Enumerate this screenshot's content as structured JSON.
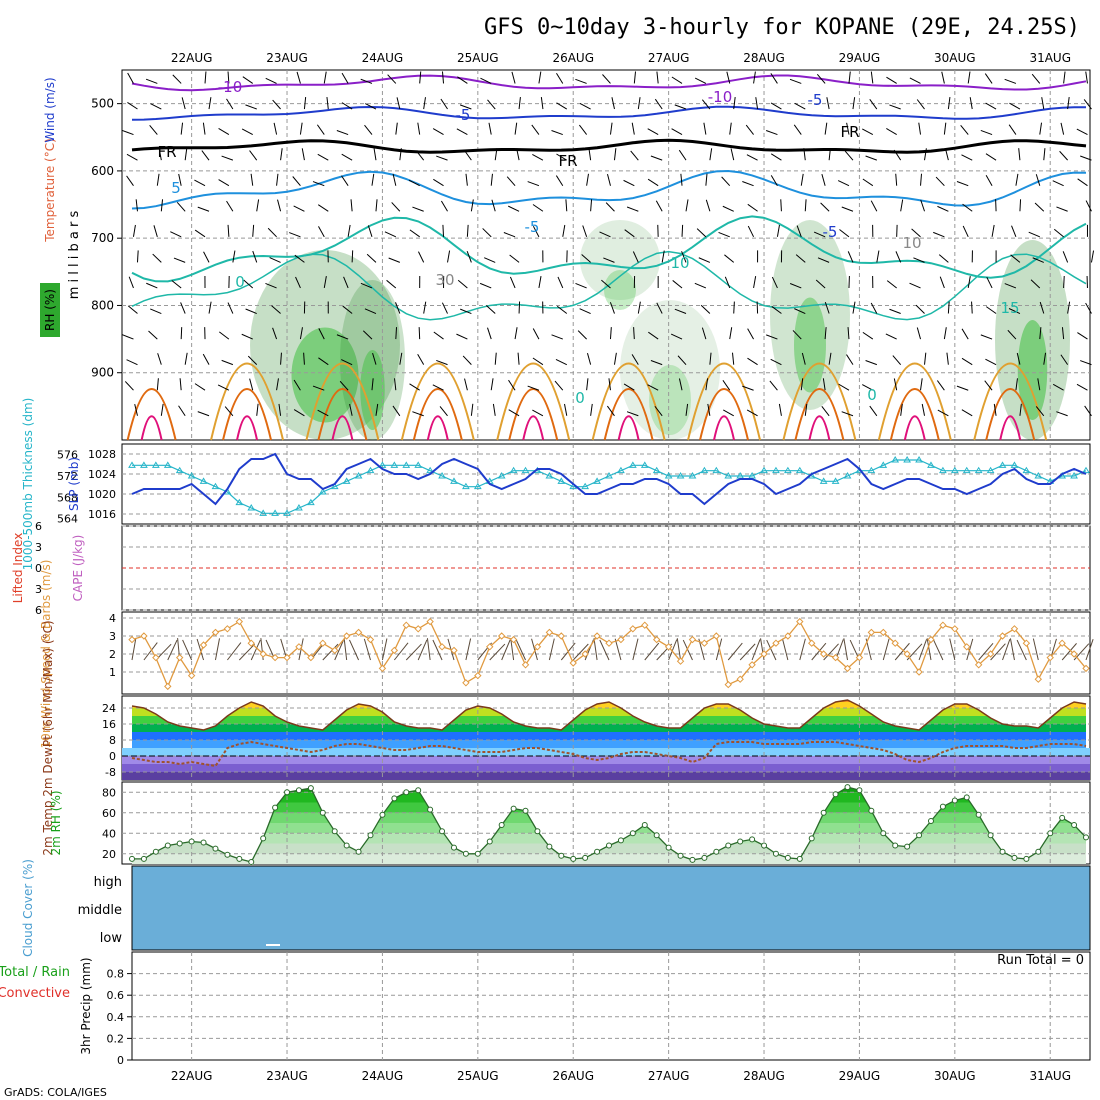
{
  "header": {
    "title": "GFS 0~10day 3-hourly for KOPANE (29E, 24.25S)",
    "footer": "GrADS: COLA/IGES"
  },
  "time_axis": {
    "date_labels": [
      "22AUG",
      "23AUG",
      "24AUG",
      "25AUG",
      "26AUG",
      "27AUG",
      "28AUG",
      "29AUG",
      "30AUG",
      "31AUG"
    ]
  },
  "colors": {
    "purple": "#8a1fc8",
    "blue": "#1f3ccc",
    "lightblue": "#1e90dd",
    "teal": "#1fb8a8",
    "orange": "#e0a030",
    "darkorange": "#e06a10",
    "magenta": "#e0107a",
    "rh_green": "#5fcf5f",
    "slp_line": "#1f3ccc",
    "thickness_line": "#26b5c9",
    "cloud": "#6aaed8",
    "wind_speed": "#e09a40",
    "dewpoint": "#a0522d"
  },
  "chart_data": [
    {
      "type": "contour",
      "panel": "upper-air",
      "ylabel": "m i l l i b a r s",
      "side_labels": {
        "rh": "RH (%)",
        "temperature": "Temperature (°C)",
        "wind": "Wind (m/s)"
      },
      "y_ticks": [
        500,
        600,
        700,
        800,
        900
      ],
      "ylim": [
        1000,
        450
      ],
      "contour_labels": [
        "-10",
        "-10",
        "-5",
        "-5",
        "FR",
        "FR",
        "FR",
        "-5",
        "5",
        "-5",
        "0",
        "10",
        "15",
        "0",
        "0",
        "30",
        "10"
      ]
    },
    {
      "type": "line",
      "panel": "slp-thickness",
      "ylabel_left": "1000-500mb Thickness (dm)",
      "ylabel_right": "SLP (mb)",
      "left_ticks": [
        564,
        568,
        572,
        576
      ],
      "right_ticks": [
        1016,
        1020,
        1024,
        1028
      ],
      "series": [
        {
          "name": "SLP (mb)",
          "values": [
            1020,
            1021,
            1021,
            1021,
            1021,
            1022,
            1020,
            1018,
            1021,
            1025,
            1027,
            1027,
            1028,
            1024,
            1023,
            1023,
            1021,
            1022,
            1025,
            1026,
            1027,
            1025,
            1024,
            1024,
            1023,
            1024,
            1026,
            1027,
            1026,
            1025,
            1022,
            1021,
            1022,
            1023,
            1025,
            1025,
            1024,
            1022,
            1020,
            1020,
            1021,
            1022,
            1022,
            1023,
            1023,
            1022,
            1020,
            1020,
            1018,
            1020,
            1022,
            1023,
            1023,
            1022,
            1020,
            1021,
            1022,
            1024,
            1025,
            1026,
            1027,
            1025,
            1022,
            1021,
            1022,
            1023,
            1023,
            1022,
            1021,
            1021,
            1020,
            1021,
            1022,
            1024,
            1025,
            1023,
            1022,
            1022,
            1024,
            1025,
            1024
          ]
        },
        {
          "name": "1000-500mb Thickness (dm)",
          "values": [
            574,
            574,
            574,
            574,
            573,
            572,
            571,
            570,
            569,
            567,
            566,
            565,
            565,
            565,
            566,
            567,
            569,
            570,
            571,
            572,
            573,
            574,
            574,
            574,
            574,
            573,
            572,
            571,
            570,
            570,
            571,
            572,
            573,
            573,
            573,
            572,
            571,
            570,
            570,
            571,
            572,
            573,
            574,
            574,
            573,
            572,
            572,
            572,
            573,
            573,
            572,
            572,
            572,
            573,
            573,
            573,
            573,
            572,
            571,
            571,
            572,
            573,
            573,
            574,
            575,
            575,
            575,
            574,
            573,
            573,
            573,
            573,
            573,
            574,
            574,
            573,
            572,
            571,
            572,
            572,
            573
          ]
        }
      ]
    },
    {
      "type": "line",
      "panel": "stability",
      "ylabel_left": "Lifted Index",
      "ylabel_right": "CAPE (J/kg)",
      "left_ticks": [
        -6,
        -3,
        0,
        3,
        6
      ],
      "ylim": [
        6,
        -6
      ]
    },
    {
      "type": "line",
      "panel": "10m-wind",
      "ylabel": "10m Wind Speed & Barbs (m/s)",
      "y_ticks": [
        1,
        2,
        3,
        4
      ],
      "ylim": [
        0,
        4
      ],
      "series": [
        {
          "name": "Speed",
          "values": [
            2.8,
            3.0,
            1.8,
            0.2,
            1.8,
            0.8,
            2.5,
            3.2,
            3.4,
            3.8,
            2.6,
            2.0,
            1.8,
            1.8,
            2.4,
            1.8,
            2.6,
            2.2,
            3.0,
            3.2,
            2.8,
            1.2,
            2.2,
            3.6,
            3.4,
            3.8,
            2.4,
            2.2,
            0.4,
            0.8,
            2.4,
            3.0,
            2.8,
            1.4,
            2.4,
            3.2,
            3.0,
            1.5,
            2.0,
            3.0,
            2.6,
            2.8,
            3.4,
            3.6,
            2.8,
            2.4,
            1.6,
            2.8,
            2.6,
            3.0,
            0.3,
            0.6,
            1.4,
            2.0,
            2.6,
            3.0,
            3.8,
            2.6,
            2.0,
            1.8,
            1.2,
            1.8,
            3.2,
            3.2,
            2.6,
            2.0,
            1.0,
            2.8,
            3.6,
            3.4,
            2.4,
            1.4,
            2.0,
            3.0,
            3.4,
            2.6,
            0.6,
            1.8,
            2.6,
            2.0,
            1.2
          ]
        }
      ]
    },
    {
      "type": "area",
      "panel": "2m-temp",
      "ylabel": "2m Temp 2m DewPt (6hr Min/Max) (°C)",
      "y_ticks": [
        -8,
        0,
        8,
        16,
        24
      ],
      "ylim": [
        -12,
        30
      ],
      "series": [
        {
          "name": "2m Temp",
          "values": [
            25,
            24,
            21,
            17,
            15,
            14,
            13,
            15,
            20,
            24,
            27,
            25,
            20,
            17,
            15,
            14,
            13,
            18,
            23,
            26,
            25,
            22,
            17,
            15,
            14,
            14,
            13,
            18,
            23,
            25,
            24,
            21,
            17,
            15,
            14,
            14,
            13,
            18,
            23,
            26,
            27,
            24,
            20,
            17,
            15,
            14,
            14,
            19,
            24,
            26,
            26,
            23,
            19,
            16,
            15,
            14,
            14,
            19,
            24,
            27,
            28,
            25,
            21,
            17,
            15,
            14,
            13,
            18,
            23,
            26,
            26,
            23,
            19,
            16,
            15,
            15,
            14,
            19,
            24,
            27,
            26
          ]
        },
        {
          "name": "2m DewPt",
          "values": [
            -1,
            -2,
            -3,
            -3,
            -4,
            -3,
            -4,
            -5,
            4,
            6,
            7,
            6,
            5,
            4,
            3,
            2,
            3,
            5,
            6,
            6,
            5,
            4,
            3,
            3,
            4,
            5,
            5,
            4,
            3,
            2,
            2,
            2,
            3,
            4,
            4,
            3,
            2,
            1,
            -1,
            -2,
            -1,
            1,
            2,
            2,
            1,
            0,
            -1,
            -3,
            -1,
            6,
            7,
            7,
            7,
            6,
            6,
            6,
            6,
            7,
            7,
            7,
            6,
            5,
            4,
            3,
            1,
            -2,
            -3,
            -1,
            2,
            4,
            5,
            5,
            5,
            5,
            4,
            4,
            5,
            6,
            6,
            6,
            5
          ]
        }
      ]
    },
    {
      "type": "area",
      "panel": "2m-rh",
      "ylabel": "2m RH (%)",
      "y_ticks": [
        20,
        40,
        60,
        80
      ],
      "ylim": [
        10,
        90
      ],
      "series": [
        {
          "name": "2m RH",
          "values": [
            15,
            15,
            22,
            28,
            30,
            32,
            31,
            25,
            19,
            15,
            12,
            35,
            65,
            80,
            82,
            84,
            60,
            42,
            28,
            22,
            38,
            58,
            74,
            80,
            82,
            63,
            42,
            26,
            20,
            20,
            32,
            48,
            64,
            62,
            42,
            27,
            18,
            15,
            16,
            22,
            28,
            33,
            40,
            48,
            38,
            26,
            18,
            14,
            16,
            22,
            28,
            32,
            34,
            28,
            20,
            16,
            15,
            35,
            60,
            78,
            85,
            82,
            62,
            40,
            28,
            27,
            38,
            52,
            66,
            72,
            75,
            58,
            38,
            22,
            16,
            15,
            22,
            40,
            55,
            48,
            36
          ]
        }
      ]
    },
    {
      "type": "area",
      "panel": "cloud-cover",
      "ylabel": "Cloud Cover (%)",
      "levels": [
        "high",
        "middle",
        "low"
      ]
    },
    {
      "type": "bar",
      "panel": "precip",
      "ylabel": "3hr Precip (mm)",
      "legend": [
        "Total / Rain",
        "Convective"
      ],
      "y_ticks": [
        0,
        0.2,
        0.4,
        0.6,
        0.8
      ],
      "ylim": [
        0,
        1
      ],
      "annotation": "Run Total = 0"
    }
  ]
}
